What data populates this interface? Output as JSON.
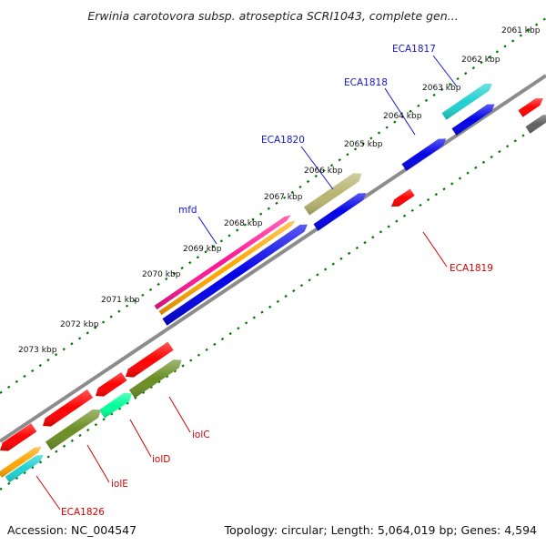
{
  "title": "Erwinia carotovora subsp. atroseptica SCRI1043, complete gen...",
  "footer": {
    "accession": "Accession: NC_004547",
    "summary": "Topology: circular; Length: 5,064,019 bp; Genes: 4,594"
  },
  "ticks": [
    "2061 kbp",
    "2062 kbp",
    "2063 kbp",
    "2064 kbp",
    "2065 kbp",
    "2066 kbp",
    "2067 kbp",
    "2068 kbp",
    "2069 kbp",
    "2070 kbp",
    "2071 kbp",
    "2072 kbp",
    "2073 kbp"
  ],
  "gene_labels": {
    "eca1817": "ECA1817",
    "eca1818": "ECA1818",
    "eca1820": "ECA1820",
    "mfd": "mfd",
    "eca1819": "ECA1819",
    "iolc": "iolC",
    "iold": "iolD",
    "iole": "iolE",
    "eca1826": "ECA1826"
  },
  "colors": {
    "red": "#ff0000",
    "blue": "#0000e8",
    "cyan": "#20d0d0",
    "olive": "#6b8e23",
    "khaki": "#b8b470",
    "magenta": "#ff1493",
    "orange": "#ffa500",
    "springgreen": "#00ff99",
    "gray": "#606060",
    "tick_green": "#007a00"
  }
}
